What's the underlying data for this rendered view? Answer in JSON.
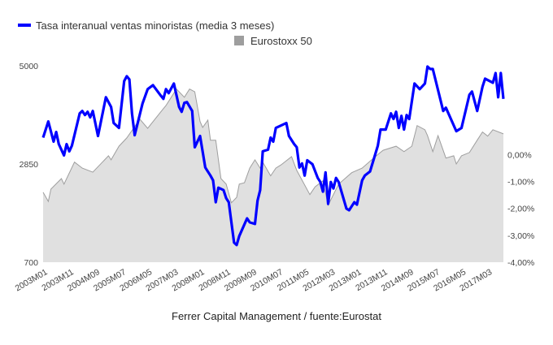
{
  "chart_data": {
    "type": "area+line",
    "footer": "Ferrer Capital Management / fuente:Eurostat",
    "legend_placement": "top",
    "x_tick_labels": [
      "2003M01",
      "2003M11",
      "2004M09",
      "2005M07",
      "2006M05",
      "2007M03",
      "2008M01",
      "2008M11",
      "2009M09",
      "2010M07",
      "2011M05",
      "2012M03",
      "2013M01",
      "2013M11",
      "2014M09",
      "2015M07",
      "2016M05",
      "2017M03"
    ],
    "x_range": [
      "2003M01",
      "2017M09"
    ],
    "left_axis": {
      "ticks": [
        "5000",
        "2850",
        "700"
      ],
      "range": [
        700,
        5000
      ]
    },
    "right_axis": {
      "ticks": [
        "0,00%",
        "-1,00%",
        "-2,00%",
        "-3,00%",
        "-4,00%"
      ],
      "range": [
        -4.0,
        3.3
      ],
      "unit": "%"
    },
    "grid": false,
    "series": [
      {
        "name": "Tasa interanual ventas minoristas (media 3 meses)",
        "kind": "line",
        "axis": "right",
        "color": "#0000ff",
        "points": [
          [
            "2003M01",
            0.63
          ],
          [
            "2003M03",
            1.23
          ],
          [
            "2003M05",
            0.48
          ],
          [
            "2003M06",
            0.84
          ],
          [
            "2003M07",
            0.39
          ],
          [
            "2003M09",
            -0.03
          ],
          [
            "2003M10",
            0.39
          ],
          [
            "2003M11",
            0.12
          ],
          [
            "2003M12",
            0.33
          ],
          [
            "2004M03",
            1.53
          ],
          [
            "2004M04",
            1.62
          ],
          [
            "2004M05",
            1.47
          ],
          [
            "2004M06",
            1.59
          ],
          [
            "2004M07",
            1.38
          ],
          [
            "2004M08",
            1.62
          ],
          [
            "2004M10",
            0.69
          ],
          [
            "2005M01",
            2.13
          ],
          [
            "2005M03",
            1.77
          ],
          [
            "2005M04",
            1.17
          ],
          [
            "2005M06",
            0.99
          ],
          [
            "2005M08",
            2.73
          ],
          [
            "2005M09",
            2.91
          ],
          [
            "2005M10",
            2.79
          ],
          [
            "2005M11",
            1.53
          ],
          [
            "2005M12",
            0.72
          ],
          [
            "2006M03",
            1.89
          ],
          [
            "2006M05",
            2.43
          ],
          [
            "2006M07",
            2.58
          ],
          [
            "2006M10",
            2.19
          ],
          [
            "2006M11",
            2.07
          ],
          [
            "2006M12",
            2.43
          ],
          [
            "2007M01",
            2.28
          ],
          [
            "2007M03",
            2.64
          ],
          [
            "2007M05",
            1.77
          ],
          [
            "2007M06",
            1.59
          ],
          [
            "2007M07",
            1.92
          ],
          [
            "2007M08",
            1.95
          ],
          [
            "2007M10",
            1.62
          ],
          [
            "2007M11",
            0.27
          ],
          [
            "2008M01",
            0.69
          ],
          [
            "2008M03",
            -0.48
          ],
          [
            "2008M05",
            -0.78
          ],
          [
            "2008M06",
            -0.96
          ],
          [
            "2008M07",
            -1.77
          ],
          [
            "2008M08",
            -1.23
          ],
          [
            "2008M10",
            -1.32
          ],
          [
            "2008M11",
            -1.62
          ],
          [
            "2008M12",
            -1.77
          ],
          [
            "2009M02",
            -3.27
          ],
          [
            "2009M03",
            -3.36
          ],
          [
            "2009M04",
            -3.03
          ],
          [
            "2009M07",
            -2.37
          ],
          [
            "2009M08",
            -2.52
          ],
          [
            "2009M10",
            -2.58
          ],
          [
            "2009M11",
            -1.71
          ],
          [
            "2009M12",
            -1.32
          ],
          [
            "2010M01",
            0.12
          ],
          [
            "2010M03",
            0.18
          ],
          [
            "2010M04",
            0.63
          ],
          [
            "2010M05",
            0.48
          ],
          [
            "2010M06",
            0.99
          ],
          [
            "2010M10",
            1.17
          ],
          [
            "2010M11",
            0.69
          ],
          [
            "2011M01",
            0.39
          ],
          [
            "2011M02",
            0.27
          ],
          [
            "2011M03",
            -0.48
          ],
          [
            "2011M04",
            -0.33
          ],
          [
            "2011M05",
            -0.78
          ],
          [
            "2011M06",
            -0.21
          ],
          [
            "2011M08",
            -0.36
          ],
          [
            "2011M10",
            -0.87
          ],
          [
            "2011M11",
            -1.02
          ],
          [
            "2011M12",
            -1.38
          ],
          [
            "2012M01",
            -0.66
          ],
          [
            "2012M02",
            -1.83
          ],
          [
            "2012M03",
            -1.02
          ],
          [
            "2012M04",
            -1.26
          ],
          [
            "2012M05",
            -0.87
          ],
          [
            "2012M06",
            -1.02
          ],
          [
            "2012M09",
            -2.01
          ],
          [
            "2012M10",
            -2.07
          ],
          [
            "2012M12",
            -1.77
          ],
          [
            "2013M01",
            -1.86
          ],
          [
            "2013M03",
            -0.96
          ],
          [
            "2013M04",
            -0.78
          ],
          [
            "2013M06",
            -0.63
          ],
          [
            "2013M09",
            0.33
          ],
          [
            "2013M10",
            0.93
          ],
          [
            "2013M12",
            0.93
          ],
          [
            "2014M02",
            1.53
          ],
          [
            "2014M03",
            1.32
          ],
          [
            "2014M04",
            1.59
          ],
          [
            "2014M05",
            0.99
          ],
          [
            "2014M06",
            1.44
          ],
          [
            "2014M07",
            0.93
          ],
          [
            "2014M08",
            1.47
          ],
          [
            "2014M09",
            1.32
          ],
          [
            "2014M11",
            2.64
          ],
          [
            "2015M01",
            2.43
          ],
          [
            "2015M03",
            2.64
          ],
          [
            "2015M04",
            3.27
          ],
          [
            "2015M05",
            3.18
          ],
          [
            "2015M06",
            3.18
          ],
          [
            "2015M10",
            1.62
          ],
          [
            "2015M11",
            1.74
          ],
          [
            "2016M03",
            0.87
          ],
          [
            "2016M05",
            0.99
          ],
          [
            "2016M08",
            2.22
          ],
          [
            "2016M09",
            2.34
          ],
          [
            "2016M11",
            1.62
          ],
          [
            "2017M01",
            2.52
          ],
          [
            "2017M02",
            2.82
          ],
          [
            "2017M05",
            2.67
          ],
          [
            "2017M06",
            3.03
          ],
          [
            "2017M07",
            2.13
          ],
          [
            "2017M08",
            3.03
          ],
          [
            "2017M09",
            2.07
          ]
        ]
      },
      {
        "name": "Eurostoxx 50",
        "kind": "area",
        "axis": "left",
        "color": "#9e9e9e",
        "fill": "#e0e0e0",
        "points": [
          [
            "2003M01",
            2230
          ],
          [
            "2003M03",
            2030
          ],
          [
            "2003M04",
            2300
          ],
          [
            "2003M08",
            2530
          ],
          [
            "2003M09",
            2410
          ],
          [
            "2004M01",
            2890
          ],
          [
            "2004M04",
            2760
          ],
          [
            "2004M08",
            2670
          ],
          [
            "2005M02",
            3030
          ],
          [
            "2005M03",
            2940
          ],
          [
            "2005M06",
            3240
          ],
          [
            "2005M09",
            3420
          ],
          [
            "2006M02",
            3830
          ],
          [
            "2006M05",
            3630
          ],
          [
            "2006M10",
            3990
          ],
          [
            "2006M12",
            4130
          ],
          [
            "2007M04",
            4490
          ],
          [
            "2007M07",
            4310
          ],
          [
            "2007M09",
            4490
          ],
          [
            "2007M11",
            4430
          ],
          [
            "2008M01",
            3780
          ],
          [
            "2008M02",
            3650
          ],
          [
            "2008M04",
            3810
          ],
          [
            "2008M05",
            3370
          ],
          [
            "2008M07",
            3370
          ],
          [
            "2008M09",
            2530
          ],
          [
            "2008M11",
            2410
          ],
          [
            "2009M01",
            2000
          ],
          [
            "2009M03",
            2120
          ],
          [
            "2009M04",
            2410
          ],
          [
            "2009M06",
            2440
          ],
          [
            "2009M08",
            2760
          ],
          [
            "2009M10",
            2940
          ],
          [
            "2009M12",
            2760
          ],
          [
            "2010M01",
            2890
          ],
          [
            "2010M04",
            2590
          ],
          [
            "2010M06",
            2760
          ],
          [
            "2010M08",
            2830
          ],
          [
            "2010M12",
            3010
          ],
          [
            "2011M02",
            2710
          ],
          [
            "2011M07",
            2180
          ],
          [
            "2011M09",
            2350
          ],
          [
            "2011M12",
            2480
          ],
          [
            "2012M02",
            1950
          ],
          [
            "2012M06",
            2410
          ],
          [
            "2012M11",
            2660
          ],
          [
            "2013M03",
            2760
          ],
          [
            "2013M08",
            3010
          ],
          [
            "2013M11",
            3150
          ],
          [
            "2014M04",
            3240
          ],
          [
            "2014M07",
            3120
          ],
          [
            "2014M10",
            3240
          ],
          [
            "2014M12",
            3690
          ],
          [
            "2015M03",
            3600
          ],
          [
            "2015M04",
            3470
          ],
          [
            "2015M06",
            3120
          ],
          [
            "2015M08",
            3470
          ],
          [
            "2015M11",
            2980
          ],
          [
            "2016M02",
            3030
          ],
          [
            "2016M03",
            2850
          ],
          [
            "2016M05",
            3030
          ],
          [
            "2016M08",
            3100
          ],
          [
            "2016M11",
            3370
          ],
          [
            "2017M01",
            3550
          ],
          [
            "2017M03",
            3460
          ],
          [
            "2017M05",
            3600
          ],
          [
            "2017M09",
            3510
          ]
        ]
      }
    ]
  }
}
